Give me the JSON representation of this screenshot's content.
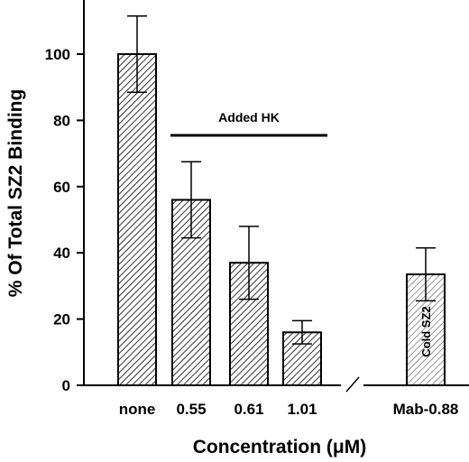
{
  "chart_data": {
    "type": "bar",
    "title": "",
    "xlabel": "Concentration (μM)",
    "ylabel": "% Of Total SZ2 Binding",
    "ylim": [
      0,
      115
    ],
    "yticks": [
      0,
      20,
      40,
      60,
      80,
      100
    ],
    "grid": false,
    "categories": [
      "none",
      "0.55",
      "0.61",
      "1.01",
      "Mab-0.88"
    ],
    "values": [
      100,
      56,
      37,
      16,
      33.5
    ],
    "errors": [
      11.5,
      11.5,
      11,
      3.5,
      8
    ],
    "bar_fill": [
      "hatched",
      "hatched",
      "hatched",
      "hatched",
      "light-hatched"
    ],
    "axis_break_between": [
      "1.01",
      "Mab-0.88"
    ],
    "annotations": {
      "added_hk": {
        "text": "Added HK",
        "spans": [
          "0.55",
          "1.01"
        ]
      },
      "cold_sz2": {
        "text": "Cold SZ2",
        "category": "Mab-0.88"
      }
    },
    "colors": {
      "bar_stroke": "#000000",
      "hatch": "#000000",
      "background": "#ffffff"
    }
  }
}
